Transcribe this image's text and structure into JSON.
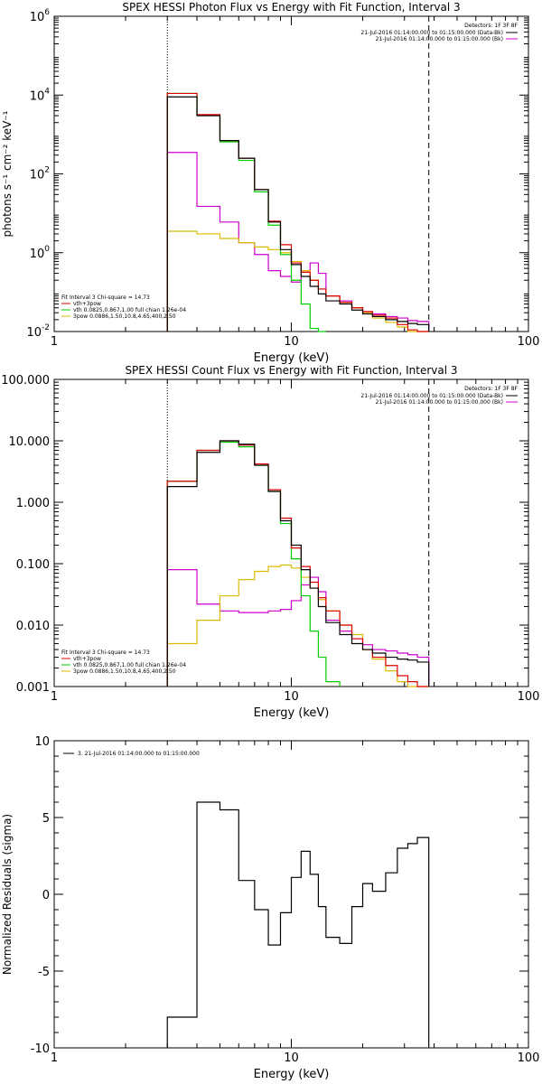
{
  "chart_data": [
    {
      "type": "line",
      "title": "SPEX HESSI Photon Flux vs Energy with Fit Function, Interval 3",
      "xlabel": "Energy (keV)",
      "ylabel": "photons s⁻¹ cm⁻² keV⁻¹",
      "xscale": "log",
      "yscale": "log",
      "xlim": [
        1,
        100
      ],
      "ylim": [
        0.01,
        1000000
      ],
      "xticks": [
        {
          "v": 1,
          "label": "1"
        },
        {
          "v": 10,
          "label": "10"
        },
        {
          "v": 100,
          "label": "100"
        }
      ],
      "yticks": [
        {
          "v": 0.01,
          "label": "10",
          "exp": "-2"
        },
        {
          "v": 1,
          "label": "10",
          "exp": "0"
        },
        {
          "v": 100,
          "label": "10",
          "exp": "2"
        },
        {
          "v": 10000,
          "label": "10",
          "exp": "4"
        },
        {
          "v": 1000000,
          "label": "10",
          "exp": "6"
        }
      ],
      "vlines": [
        {
          "x": 3.0,
          "style": "dotted"
        },
        {
          "x": 38.0,
          "style": "dashed"
        }
      ],
      "legend_topright": {
        "header": "Detectors: 1F 3F 8F",
        "entries": [
          {
            "label": "21-Jul-2016 01:14:00.000 to 01:15:00.000 (Data-Bk)",
            "color": "#000000"
          },
          {
            "label": "21-Jul-2016 01:14:00.000 to 01:15:00.000 (Bk)",
            "color": "#cc00cc"
          }
        ]
      },
      "legend_bottomleft": {
        "header": "Fit Interval 3   Chi-square = 14.73",
        "entries": [
          {
            "label": "vth+3pow",
            "color": "#dd0000"
          },
          {
            "label": "vth 0.0825,0.867,1.00  full chian 1.26e-04",
            "color": "#00cc00"
          },
          {
            "label": "3pow 0.0886,1.50,10.8,4.65,400,2.50",
            "color": "#ddbb00"
          }
        ]
      },
      "series": [
        {
          "color": "#000000",
          "edges": [
            3.0,
            4.0,
            5.0,
            6.0,
            7.0,
            8.0,
            9.0,
            10.0,
            11.0,
            12.0,
            13.0,
            14.0,
            16.0,
            18.0,
            20.0,
            22.0,
            25.0,
            28.0,
            31.0,
            34.0,
            38.0
          ],
          "values": [
            9000,
            3000,
            700,
            250,
            40,
            6,
            1.2,
            0.5,
            0.25,
            0.14,
            0.09,
            0.06,
            0.05,
            0.035,
            0.028,
            0.024,
            0.02,
            0.018,
            0.016,
            0.015
          ]
        },
        {
          "color": "#dd0000",
          "edges": [
            3.0,
            4.0,
            5.0,
            6.0,
            7.0,
            8.0,
            9.0,
            10.0,
            11.0,
            12.0,
            13.0,
            14.0,
            16.0,
            18.0,
            20.0,
            22.0,
            25.0,
            28.0,
            31.0,
            34.0,
            38.0
          ],
          "values": [
            11000,
            3200,
            700,
            250,
            40,
            6.3,
            1.6,
            0.55,
            0.32,
            0.2,
            0.12,
            0.08,
            0.055,
            0.04,
            0.032,
            0.026,
            0.022,
            0.015,
            0.011,
            0.01
          ]
        },
        {
          "color": "#00cc00",
          "edges": [
            3.0,
            4.0,
            5.0,
            6.0,
            7.0,
            8.0,
            9.0,
            10.0,
            11.0,
            12.0,
            13.0,
            14.0
          ],
          "values": [
            11000,
            3000,
            650,
            220,
            35,
            5,
            0.9,
            0.2,
            0.05,
            0.012,
            0.004
          ]
        },
        {
          "color": "#ddbb00",
          "edges": [
            3.0,
            4.0,
            5.0,
            6.0,
            7.0,
            8.0,
            9.0,
            10.0,
            11.0,
            12.0,
            13.0,
            14.0,
            16.0,
            18.0,
            20.0,
            22.0,
            25.0,
            28.0,
            31.0,
            34.0,
            38.0
          ],
          "values": [
            3.5,
            3.0,
            2.3,
            1.8,
            1.4,
            1.2,
            1.0,
            0.6,
            0.35,
            0.2,
            0.12,
            0.08,
            0.055,
            0.04,
            0.03,
            0.022,
            0.017,
            0.013,
            0.01,
            0.008
          ]
        },
        {
          "color": "#cc00cc",
          "edges": [
            3.0,
            4.0,
            5.0,
            6.0,
            7.0,
            8.0,
            9.0,
            10.0,
            11.0,
            12.0,
            13.0,
            14.0,
            16.0,
            18.0,
            20.0,
            22.0,
            25.0,
            28.0,
            31.0,
            34.0,
            38.0
          ],
          "values": [
            350,
            15,
            6,
            1.8,
            0.9,
            0.35,
            0.25,
            0.18,
            0.32,
            0.55,
            0.3,
            0.08,
            0.06,
            0.04,
            0.032,
            0.028,
            0.024,
            0.022,
            0.019,
            0.018
          ]
        }
      ]
    },
    {
      "type": "line",
      "title": "SPEX HESSI Count Flux vs Energy with Fit Function, Interval 3",
      "xlabel": "Energy (keV)",
      "ylabel": "",
      "xscale": "log",
      "yscale": "log",
      "xlim": [
        1,
        100
      ],
      "ylim": [
        0.001,
        100
      ],
      "xticks": [
        {
          "v": 1,
          "label": "1"
        },
        {
          "v": 10,
          "label": "10"
        },
        {
          "v": 100,
          "label": "100"
        }
      ],
      "yticks": [
        {
          "v": 0.001,
          "label": "0.001"
        },
        {
          "v": 0.01,
          "label": "0.010"
        },
        {
          "v": 0.1,
          "label": "0.100"
        },
        {
          "v": 1,
          "label": "1.000"
        },
        {
          "v": 10,
          "label": "10.000"
        },
        {
          "v": 100,
          "label": "100.000"
        }
      ],
      "vlines": [
        {
          "x": 3.0,
          "style": "dotted"
        },
        {
          "x": 38.0,
          "style": "dashed"
        }
      ],
      "legend_topright": {
        "header": "Detectors: 1F 3F 8F",
        "entries": [
          {
            "label": "21-Jul-2016 01:14:00.000 to 01:15:00.000 (Data-Bk)",
            "color": "#000000"
          },
          {
            "label": "21-Jul-2016 01:14:00.000 to 01:15:00.000 (Bk)",
            "color": "#cc00cc"
          }
        ]
      },
      "legend_bottomleft": {
        "header": "Fit Interval 3   Chi-square = 14.73",
        "entries": [
          {
            "label": "vth+3pow",
            "color": "#dd0000"
          },
          {
            "label": "vth 0.0825,0.867,1.00  full chian 1.26e-04",
            "color": "#00cc00"
          },
          {
            "label": "3pow 0.0886,1.50,10.8,4.65,400,2.50",
            "color": "#ddbb00"
          }
        ]
      },
      "series": [
        {
          "color": "#000000",
          "edges": [
            3.0,
            4.0,
            5.0,
            6.0,
            7.0,
            8.0,
            9.0,
            10.0,
            11.0,
            12.0,
            13.0,
            14.0,
            16.0,
            18.0,
            20.0,
            22.0,
            25.0,
            28.0,
            31.0,
            34.0,
            38.0
          ],
          "values": [
            1.8,
            6.5,
            10.0,
            8.8,
            4.0,
            1.5,
            0.5,
            0.2,
            0.08,
            0.04,
            0.02,
            0.011,
            0.007,
            0.005,
            0.004,
            0.0035,
            0.003,
            0.0028,
            0.0027,
            0.0025
          ]
        },
        {
          "color": "#dd0000",
          "edges": [
            3.0,
            4.0,
            5.0,
            6.0,
            7.0,
            8.0,
            9.0,
            10.0,
            11.0,
            12.0,
            13.0,
            14.0,
            16.0,
            18.0,
            20.0,
            22.0,
            25.0,
            28.0,
            31.0,
            34.0,
            38.0
          ],
          "values": [
            2.2,
            7.0,
            10.0,
            8.5,
            4.2,
            1.6,
            0.55,
            0.18,
            0.09,
            0.05,
            0.028,
            0.017,
            0.01,
            0.006,
            0.004,
            0.003,
            0.0022,
            0.0015,
            0.0012,
            0.001
          ]
        },
        {
          "color": "#00cc00",
          "edges": [
            3.0,
            4.0,
            5.0,
            6.0,
            7.0,
            8.0,
            9.0,
            10.0,
            11.0,
            12.0,
            13.0,
            14.0,
            16.0
          ],
          "values": [
            2.2,
            7.0,
            9.5,
            8.0,
            4.0,
            1.5,
            0.45,
            0.12,
            0.03,
            0.008,
            0.003,
            0.0012
          ]
        },
        {
          "color": "#ddbb00",
          "edges": [
            3.0,
            4.0,
            5.0,
            6.0,
            7.0,
            8.0,
            9.0,
            10.0,
            11.0,
            12.0,
            13.0,
            14.0,
            16.0,
            18.0,
            20.0,
            22.0,
            25.0,
            28.0,
            31.0,
            34.0,
            38.0
          ],
          "values": [
            0.005,
            0.012,
            0.03,
            0.055,
            0.075,
            0.09,
            0.095,
            0.085,
            0.06,
            0.04,
            0.026,
            0.017,
            0.01,
            0.007,
            0.004,
            0.0028,
            0.0018,
            0.0012,
            0.0009,
            0.0007
          ]
        },
        {
          "color": "#cc00cc",
          "edges": [
            3.0,
            4.0,
            5.0,
            6.0,
            7.0,
            8.0,
            9.0,
            10.0,
            11.0,
            12.0,
            13.0,
            14.0,
            16.0,
            18.0,
            20.0,
            22.0,
            25.0,
            28.0,
            31.0,
            34.0,
            38.0
          ],
          "values": [
            0.08,
            0.022,
            0.017,
            0.016,
            0.016,
            0.017,
            0.018,
            0.025,
            0.045,
            0.06,
            0.035,
            0.012,
            0.008,
            0.006,
            0.0048,
            0.004,
            0.0038,
            0.0035,
            0.0033,
            0.003
          ]
        }
      ]
    },
    {
      "type": "line",
      "title": "",
      "xlabel": "Energy (keV)",
      "ylabel": "Normalized Residuals (sigma)",
      "xscale": "log",
      "yscale": "linear",
      "xlim": [
        1,
        100
      ],
      "ylim": [
        -10,
        10
      ],
      "xticks": [
        {
          "v": 1,
          "label": "1"
        },
        {
          "v": 10,
          "label": "10"
        },
        {
          "v": 100,
          "label": "100"
        }
      ],
      "yticks": [
        {
          "v": -10,
          "label": "-10"
        },
        {
          "v": -5,
          "label": "-5"
        },
        {
          "v": 0,
          "label": "0"
        },
        {
          "v": 5,
          "label": "5"
        },
        {
          "v": 10,
          "label": "10"
        }
      ],
      "vlines": [],
      "legend_topleft": {
        "entries": [
          {
            "label": "3. 21-Jul-2016 01:14:00.000 to 01:15:00.000",
            "color": "#000000"
          }
        ]
      },
      "series": [
        {
          "color": "#000000",
          "edges": [
            3.0,
            4.0,
            5.0,
            6.0,
            7.0,
            8.0,
            9.0,
            10.0,
            11.0,
            12.0,
            13.0,
            14.0,
            16.0,
            18.0,
            20.0,
            22.0,
            25.0,
            28.0,
            31.0,
            34.0,
            38.0
          ],
          "values": [
            -8.0,
            6.0,
            5.5,
            0.9,
            -1.0,
            -3.3,
            -1.2,
            1.1,
            2.8,
            1.3,
            -0.8,
            -2.8,
            -3.2,
            -0.8,
            0.7,
            0.2,
            1.4,
            3.0,
            3.3,
            3.7
          ]
        }
      ]
    }
  ]
}
